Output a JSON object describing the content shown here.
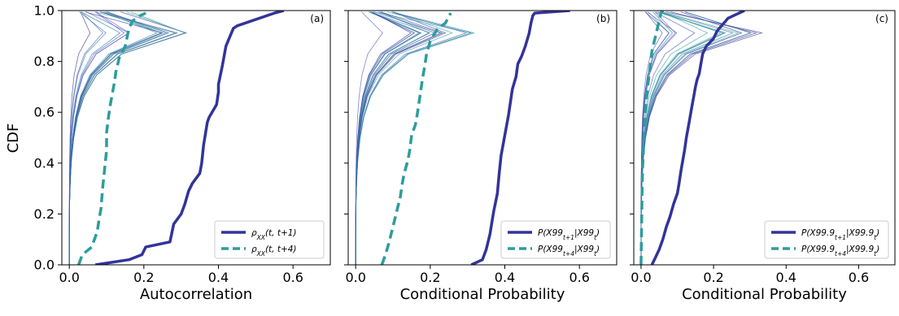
{
  "figure": {
    "ylabel": "CDF"
  },
  "chart_data": [
    {
      "type": "line",
      "panel_label": "(a)",
      "xlabel": "Autocorrelation",
      "ylabel": "CDF",
      "xlim": [
        -0.02,
        0.7
      ],
      "ylim": [
        0.0,
        1.0
      ],
      "xticks": [
        0.0,
        0.2,
        0.4,
        0.6
      ],
      "xtick_labels": [
        "0.0",
        "0.2",
        "0.4",
        "0.6"
      ],
      "yticks": [
        0.0,
        0.2,
        0.4,
        0.6,
        0.8,
        1.0
      ],
      "ytick_labels": [
        "0.0",
        "0.2",
        "0.4",
        "0.6",
        "0.8",
        "1.0"
      ],
      "legend": "bottom-right",
      "series": [
        {
          "name": "ρ_XX(t, t+1)",
          "style": "solid",
          "color": "#33339a",
          "x": [
            0.07,
            0.16,
            0.195,
            0.205,
            0.27,
            0.28,
            0.3,
            0.31,
            0.32,
            0.33,
            0.35,
            0.355,
            0.36,
            0.37,
            0.375,
            0.395,
            0.4,
            0.4,
            0.41,
            0.42,
            0.44,
            0.45,
            0.55,
            0.575
          ],
          "y": [
            0.0,
            0.02,
            0.04,
            0.07,
            0.09,
            0.16,
            0.2,
            0.24,
            0.29,
            0.32,
            0.36,
            0.4,
            0.47,
            0.56,
            0.58,
            0.63,
            0.68,
            0.71,
            0.78,
            0.86,
            0.93,
            0.94,
            0.99,
            1.0
          ]
        },
        {
          "name": "ρ_XX(t, t+4)",
          "style": "dashed",
          "color": "#2e9c9c",
          "x": [
            0.025,
            0.035,
            0.06,
            0.075,
            0.08,
            0.085,
            0.09,
            0.095,
            0.1,
            0.1,
            0.105,
            0.11,
            0.12,
            0.125,
            0.13,
            0.135,
            0.14,
            0.15,
            0.16,
            0.17,
            0.19,
            0.205
          ],
          "y": [
            0.0,
            0.04,
            0.07,
            0.13,
            0.18,
            0.22,
            0.31,
            0.38,
            0.45,
            0.52,
            0.58,
            0.63,
            0.71,
            0.76,
            0.79,
            0.82,
            0.83,
            0.86,
            0.93,
            0.96,
            0.98,
            0.99
          ]
        }
      ]
    },
    {
      "type": "line",
      "panel_label": "(b)",
      "xlabel": "Conditional Probability",
      "xlim": [
        -0.02,
        0.7
      ],
      "ylim": [
        0.0,
        1.0
      ],
      "xticks": [
        0.0,
        0.2,
        0.4,
        0.6
      ],
      "xtick_labels": [
        "0.0",
        "0.2",
        "0.4",
        "0.6"
      ],
      "legend": "bottom-right",
      "series": [
        {
          "name": "P(X99_{t+1}|X99_t)",
          "style": "solid",
          "color": "#33339a",
          "x": [
            0.31,
            0.34,
            0.35,
            0.36,
            0.37,
            0.38,
            0.385,
            0.39,
            0.4,
            0.405,
            0.41,
            0.415,
            0.42,
            0.43,
            0.435,
            0.445,
            0.455,
            0.465,
            0.47,
            0.475,
            0.48,
            0.575
          ],
          "y": [
            0.0,
            0.02,
            0.06,
            0.12,
            0.21,
            0.28,
            0.36,
            0.43,
            0.51,
            0.55,
            0.59,
            0.64,
            0.69,
            0.74,
            0.79,
            0.82,
            0.86,
            0.91,
            0.95,
            0.98,
            0.99,
            1.0
          ]
        },
        {
          "name": "P(X99_{t+4}|X99_t)",
          "style": "dashed",
          "color": "#2e9c9c",
          "x": [
            0.07,
            0.08,
            0.09,
            0.1,
            0.11,
            0.12,
            0.125,
            0.13,
            0.14,
            0.145,
            0.15,
            0.16,
            0.165,
            0.17,
            0.175,
            0.18,
            0.185,
            0.19,
            0.2,
            0.22,
            0.24,
            0.255
          ],
          "y": [
            0.0,
            0.04,
            0.09,
            0.15,
            0.21,
            0.27,
            0.32,
            0.36,
            0.41,
            0.45,
            0.51,
            0.55,
            0.59,
            0.64,
            0.69,
            0.74,
            0.78,
            0.83,
            0.88,
            0.93,
            0.95,
            0.99
          ]
        }
      ]
    },
    {
      "type": "line",
      "panel_label": "(c)",
      "xlabel": "Conditional Probability",
      "xlim": [
        -0.02,
        0.7
      ],
      "ylim": [
        0.0,
        1.0
      ],
      "xticks": [
        0.0,
        0.2,
        0.4,
        0.6
      ],
      "xtick_labels": [
        "0.0",
        "0.2",
        "0.4",
        "0.6"
      ],
      "legend": "bottom-right",
      "series": [
        {
          "name": "P(X99.9_{t+1}|X99.9_t)",
          "style": "solid",
          "color": "#33339a",
          "x": [
            0.03,
            0.04,
            0.05,
            0.06,
            0.07,
            0.08,
            0.09,
            0.1,
            0.105,
            0.11,
            0.115,
            0.12,
            0.125,
            0.13,
            0.135,
            0.14,
            0.145,
            0.15,
            0.155,
            0.16,
            0.165,
            0.17,
            0.18,
            0.2,
            0.21,
            0.24,
            0.285
          ],
          "y": [
            0.0,
            0.03,
            0.06,
            0.1,
            0.15,
            0.19,
            0.24,
            0.28,
            0.32,
            0.37,
            0.41,
            0.45,
            0.5,
            0.54,
            0.58,
            0.62,
            0.66,
            0.7,
            0.73,
            0.75,
            0.79,
            0.83,
            0.86,
            0.89,
            0.92,
            0.97,
            1.0
          ]
        },
        {
          "name": "P(X99.9_{t+4}|X99.9_t)",
          "style": "dashed",
          "color": "#2e9c9c",
          "x": [
            0.0,
            0.001,
            0.002,
            0.003,
            0.004,
            0.005,
            0.006,
            0.008,
            0.01,
            0.012,
            0.015,
            0.02,
            0.025,
            0.03,
            0.035,
            0.04,
            0.045,
            0.05,
            0.055,
            0.06
          ],
          "y": [
            0.0,
            0.1,
            0.2,
            0.3,
            0.37,
            0.4,
            0.43,
            0.5,
            0.55,
            0.6,
            0.65,
            0.72,
            0.78,
            0.84,
            0.87,
            0.9,
            0.93,
            0.96,
            0.99,
            1.0
          ]
        }
      ]
    }
  ]
}
